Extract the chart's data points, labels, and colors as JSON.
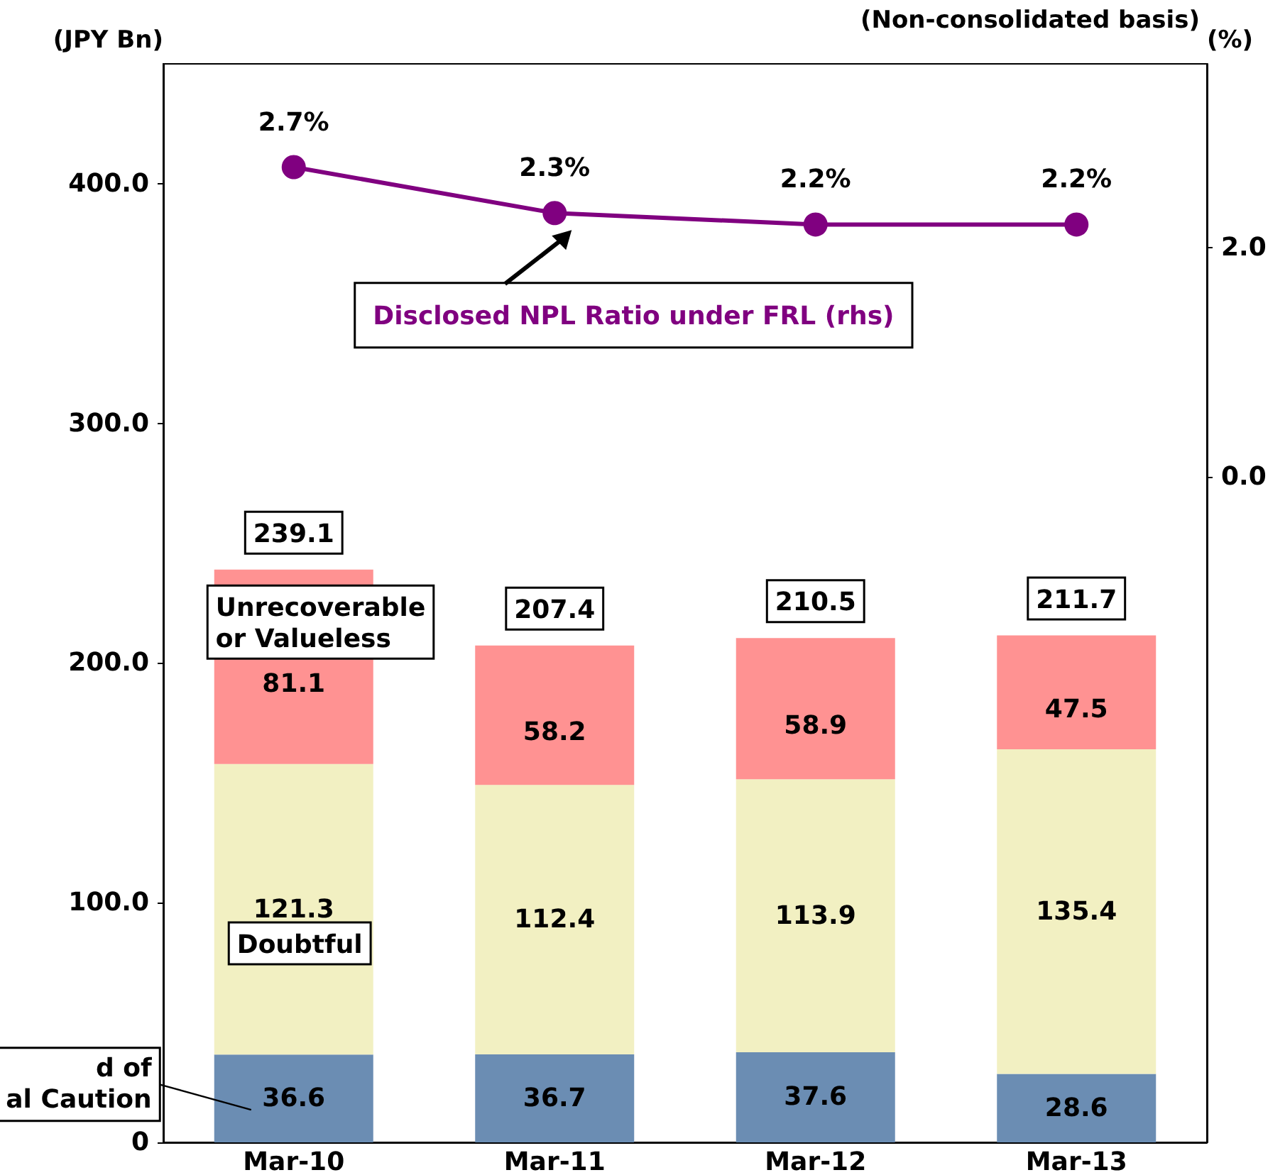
{
  "chart_data": {
    "type": "bar",
    "subtitle": "(Non-consolidated basis)",
    "ylabel": "(JPY Bn)",
    "y2label": "(%)",
    "categories": [
      "Mar-10",
      "Mar-11",
      "Mar-12",
      "Mar-13"
    ],
    "stacked": true,
    "data_labels": true,
    "series": [
      {
        "name": "d of\nal Caution",
        "color": "#6b8db3",
        "values": [
          36.6,
          36.7,
          37.6,
          28.6
        ]
      },
      {
        "name": "Doubtful",
        "color": "#f2f0c2",
        "values": [
          121.3,
          112.4,
          113.9,
          135.4
        ]
      },
      {
        "name": "Unrecoverable\nor Valueless",
        "color": "#ff9292",
        "values": [
          81.1,
          58.2,
          58.9,
          47.5
        ]
      },
      {
        "name": "Disclosed NPL Ratio under FRL (rhs)",
        "type": "line",
        "axis": "y2",
        "color": "#800080",
        "marker": "circle",
        "values": [
          2.7,
          2.3,
          2.2,
          2.2
        ],
        "value_labels": [
          "2.7%",
          "2.3%",
          "2.2%",
          "2.2%"
        ]
      }
    ],
    "totals": [
      "239.1",
      "207.4",
      "210.5",
      "211.7"
    ],
    "ylim": [
      0,
      450
    ],
    "yticks": [
      {
        "value": 0,
        "label": "0"
      },
      {
        "value": 100,
        "label": "100.0"
      },
      {
        "value": 200,
        "label": "200.0"
      },
      {
        "value": 300,
        "label": "300.0"
      },
      {
        "value": 400,
        "label": "400.0"
      }
    ],
    "y2lim": [
      -5.8,
      3.6
    ],
    "y2ticks": [
      {
        "value": 0,
        "label": "0.0"
      },
      {
        "value": 2,
        "label": "2.0"
      }
    ],
    "grid": false,
    "legend": false
  }
}
